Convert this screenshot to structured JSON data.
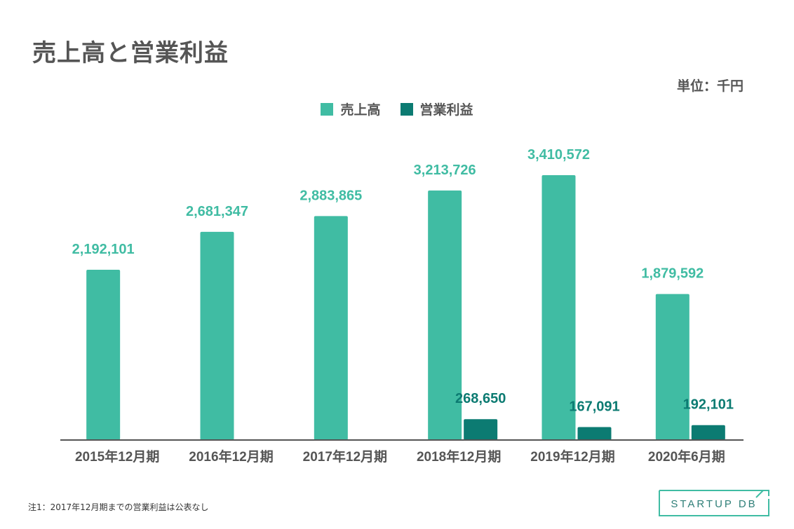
{
  "title": "売上高と営業利益",
  "unit_label": "単位：千円",
  "note": "注1：2017年12月期までの営業利益は公表なし",
  "logo_text": "STARTUP DB",
  "colors": {
    "sales": "#40bca3",
    "profit": "#0c7b72",
    "text": "#555555",
    "axis": "#555555"
  },
  "chart_data": {
    "type": "bar",
    "title": "売上高と営業利益",
    "categories": [
      "2015年12月期",
      "2016年12月期",
      "2017年12月期",
      "2018年12月期",
      "2019年12月期",
      "2020年6月期"
    ],
    "series": [
      {
        "name": "売上高",
        "values": [
          2192101,
          2681347,
          2883865,
          3213726,
          3410572,
          1879592
        ],
        "labels": [
          "2,192,101",
          "2,681,347",
          "2,883,865",
          "3,213,726",
          "3,410,572",
          "1,879,592"
        ]
      },
      {
        "name": "営業利益",
        "values": [
          null,
          null,
          null,
          268650,
          167091,
          192101
        ],
        "labels": [
          "",
          "",
          "",
          "268,650",
          "167,091",
          "192,101"
        ]
      }
    ],
    "ylim": [
      0,
      3600000
    ],
    "grid": false,
    "legend_position": "top-center"
  }
}
